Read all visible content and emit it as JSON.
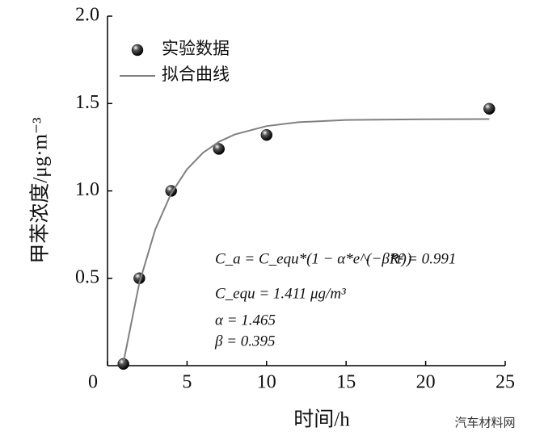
{
  "chart_data": {
    "type": "scatter",
    "x_label": "时间/h",
    "y_label": "甲苯浓度/μg·m⁻³",
    "xlim": [
      0,
      25
    ],
    "xticks": [
      0,
      5,
      10,
      15,
      20,
      25
    ],
    "ylim": [
      0,
      2
    ],
    "yticks": [
      {
        "value": 0.5,
        "label": "0.5"
      },
      {
        "value": 1,
        "label": "1.0"
      },
      {
        "value": 1.5,
        "label": "1.5"
      },
      {
        "value": 2,
        "label": "2.0"
      }
    ],
    "legend": "top-left",
    "series": [
      {
        "name": "实验数据",
        "kind": "scatter",
        "color": "#000000",
        "x": [
          1,
          2,
          4,
          7,
          10,
          24
        ],
        "values": [
          0.01,
          0.5,
          1.0,
          1.24,
          1.32,
          1.47
        ]
      },
      {
        "name": "拟合曲线",
        "kind": "line",
        "color": "#808080",
        "x": [
          1,
          2,
          3,
          4,
          5,
          6,
          7,
          8,
          10,
          12,
          15,
          20,
          24
        ],
        "values": [
          0.018,
          0.473,
          0.779,
          0.985,
          1.124,
          1.218,
          1.281,
          1.323,
          1.371,
          1.393,
          1.406,
          1.41,
          1.411
        ]
      }
    ],
    "annotations": [
      "C_a = C_equ*(1 − α*e^(−β*t))",
      "R² = 0.991",
      "C_equ = 1.411 μg/m³",
      "α = 1.465",
      "β = 0.395"
    ],
    "watermark": "汽车材料网"
  }
}
